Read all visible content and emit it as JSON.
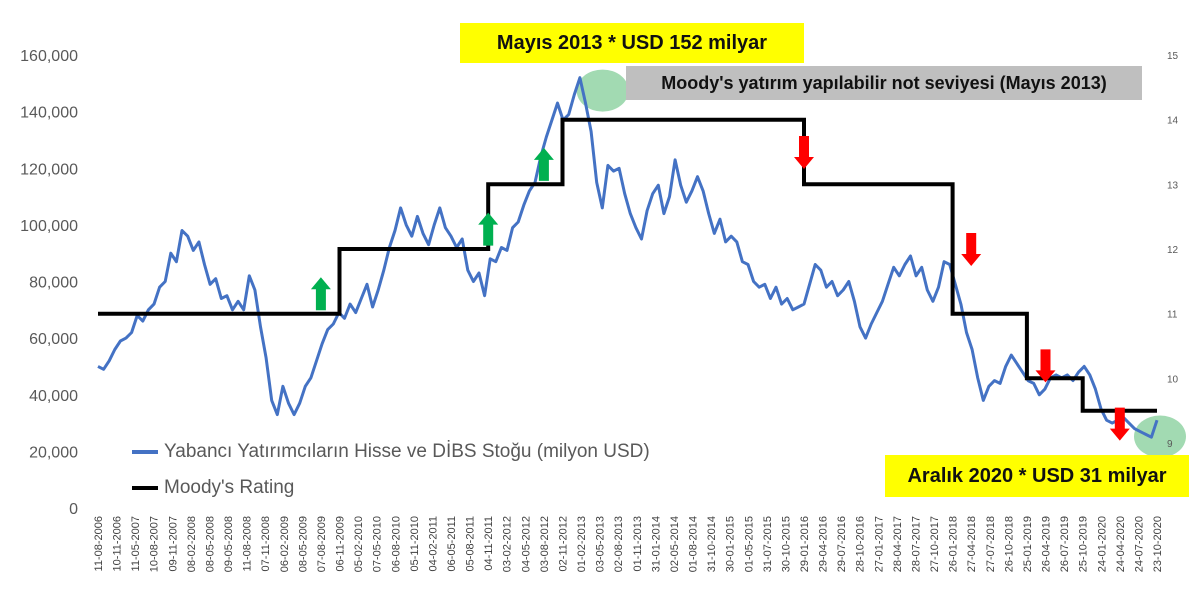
{
  "chart_data": {
    "type": "line",
    "title": "",
    "xlabel": "",
    "ylabel": "",
    "ylim": [
      0,
      160000
    ],
    "y2lim": [
      9,
      15
    ],
    "yticks": [
      "0",
      "20,000",
      "40,000",
      "60,000",
      "80,000",
      "100,000",
      "120,000",
      "140,000",
      "160,000"
    ],
    "y2ticks": [
      "9",
      "10",
      "11",
      "12",
      "13",
      "14",
      "15"
    ],
    "xticks": [
      "11-08-2006",
      "10-11-2006",
      "11-05-2007",
      "10-08-2007",
      "09-11-2007",
      "08-02-2008",
      "08-05-2008",
      "09-05-2008",
      "11-08-2008",
      "07-11-2008",
      "06-02-2009",
      "08-05-2009",
      "07-08-2009",
      "06-11-2009",
      "05-02-2010",
      "07-05-2010",
      "06-08-2010",
      "05-11-2010",
      "04-02-2011",
      "06-05-2011",
      "05-08-2011",
      "04-11-2011",
      "03-02-2012",
      "04-05-2012",
      "03-08-2012",
      "02-11-2012",
      "01-02-2013",
      "03-05-2013",
      "02-08-2013",
      "01-11-2013",
      "31-01-2014",
      "02-05-2014",
      "01-08-2014",
      "31-10-2014",
      "30-01-2015",
      "01-05-2015",
      "31-07-2015",
      "30-10-2015",
      "29-01-2016",
      "29-04-2016",
      "29-07-2016",
      "28-10-2016",
      "27-01-2017",
      "28-04-2017",
      "28-07-2017",
      "27-10-2017",
      "26-01-2018",
      "27-04-2018",
      "27-07-2018",
      "26-10-2018",
      "25-01-2019",
      "26-04-2019",
      "26-07-2019",
      "25-10-2019",
      "24-01-2020",
      "24-04-2020",
      "24-07-2020",
      "23-10-2020"
    ],
    "series": [
      {
        "name": "Yabancı Yatırımcıların Hisse ve DİBS Stoğu (milyon USD)",
        "axis": "left",
        "color": "#4472c4",
        "values": [
          50000,
          49000,
          52000,
          56000,
          59000,
          60000,
          62000,
          68000,
          66000,
          70000,
          72000,
          78000,
          80000,
          90000,
          87000,
          98000,
          96000,
          91000,
          94000,
          86000,
          79000,
          81000,
          74000,
          75000,
          70000,
          73000,
          70000,
          82000,
          77000,
          64000,
          53000,
          38000,
          33000,
          43000,
          37000,
          33000,
          37000,
          43000,
          46000,
          52000,
          58000,
          63000,
          65000,
          69000,
          67000,
          72000,
          69000,
          74000,
          79000,
          71000,
          77000,
          84000,
          92000,
          98000,
          106000,
          100000,
          96000,
          103000,
          97000,
          93000,
          100000,
          106000,
          99000,
          96000,
          92000,
          95000,
          84000,
          80000,
          83000,
          75000,
          88000,
          87000,
          92000,
          91000,
          99000,
          101000,
          107000,
          112000,
          115000,
          124000,
          131000,
          137000,
          143000,
          137000,
          139000,
          146000,
          152000,
          143000,
          133000,
          115000,
          106000,
          121000,
          119000,
          120000,
          111000,
          104000,
          99000,
          95000,
          105000,
          111000,
          114000,
          104000,
          110000,
          123000,
          114000,
          108000,
          112000,
          117000,
          112000,
          104000,
          97000,
          102000,
          94000,
          96000,
          94000,
          87000,
          86000,
          80000,
          78000,
          79000,
          74000,
          78000,
          72000,
          74000,
          70000,
          71000,
          72000,
          79000,
          86000,
          84000,
          78000,
          80000,
          75000,
          77000,
          80000,
          73000,
          64000,
          60000,
          65000,
          69000,
          73000,
          79000,
          85000,
          82000,
          86000,
          89000,
          82000,
          85000,
          77000,
          73000,
          78000,
          87000,
          86000,
          79000,
          72000,
          62000,
          56000,
          46000,
          38000,
          43000,
          45000,
          44000,
          50000,
          54000,
          51000,
          48000,
          45000,
          44000,
          40000,
          42000,
          46000,
          47000,
          46000,
          47000,
          45000,
          48000,
          50000,
          47000,
          42000,
          35000,
          31000,
          30000,
          31000,
          32000,
          30000,
          28000,
          27000,
          26000,
          25000,
          31000
        ]
      },
      {
        "name": "Moody's Rating",
        "axis": "right",
        "color": "#000000",
        "steps": [
          {
            "from": "11-08-2006",
            "to": "06-11-2009",
            "value": 11
          },
          {
            "from": "06-11-2009",
            "to": "04-11-2011",
            "value": 12
          },
          {
            "from": "04-11-2011",
            "to": "02-11-2012",
            "value": 13
          },
          {
            "from": "02-11-2012",
            "to": "29-01-2016",
            "value": 14
          },
          {
            "from": "29-01-2016",
            "to": "26-01-2018",
            "value": 13
          },
          {
            "from": "26-01-2018",
            "to": "25-01-2019",
            "value": 11
          },
          {
            "from": "25-01-2019",
            "to": "25-10-2019",
            "value": 10
          },
          {
            "from": "25-10-2019",
            "to": "23-10-2020",
            "value": 9.5
          }
        ]
      }
    ],
    "annotations": {
      "top": "Mayıs 2013  *  USD 152 milyar",
      "grey": "Moody's yatırım yapılabilir not seviyesi (Mayıs 2013)",
      "bottom": "Aralık 2020  * USD 31 milyar"
    },
    "arrows": [
      {
        "direction": "up",
        "color": "#00b050",
        "x": "07-08-2009"
      },
      {
        "direction": "up",
        "color": "#00b050",
        "x": "04-11-2011"
      },
      {
        "direction": "up",
        "color": "#00b050",
        "x": "03-08-2012"
      },
      {
        "direction": "down",
        "color": "#ff0000",
        "x": "29-01-2016"
      },
      {
        "direction": "down",
        "color": "#ff0000",
        "x": "27-04-2018"
      },
      {
        "direction": "down",
        "color": "#ff0000",
        "x": "26-04-2019"
      },
      {
        "direction": "down",
        "color": "#ff0000",
        "x": "24-04-2020"
      }
    ],
    "highlights": [
      {
        "x": "03-05-2013",
        "color": "#92d4a4"
      },
      {
        "x": "23-10-2020",
        "color": "#92d4a4"
      }
    ],
    "grid": false,
    "legend_position": "bottom-left"
  }
}
